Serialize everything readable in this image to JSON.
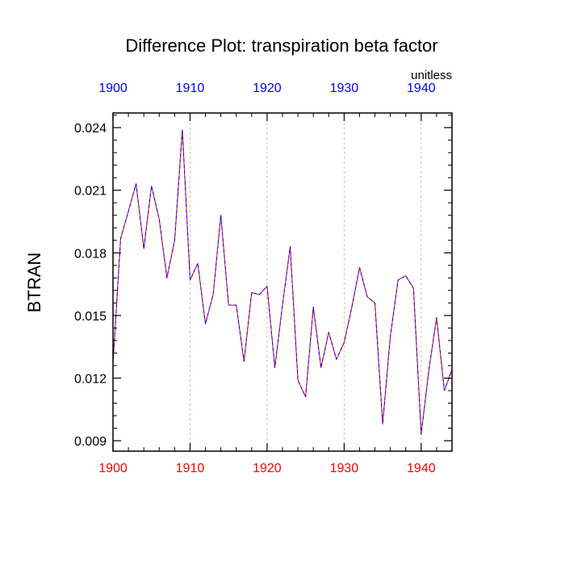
{
  "chart_data": {
    "type": "line",
    "title": "Difference Plot: transpiration beta factor",
    "units_label": "unitless",
    "ylabel": "BTRAN",
    "xlabel": "",
    "xlim": [
      1900,
      1944
    ],
    "ylim": [
      0.0085,
      0.0247
    ],
    "x_ticks": [
      1900,
      1910,
      1920,
      1930,
      1940
    ],
    "x_tick_labels": [
      "1900",
      "1910",
      "1920",
      "1930",
      "1940"
    ],
    "y_ticks": [
      0.009,
      0.012,
      0.015,
      0.018,
      0.021,
      0.024
    ],
    "y_tick_labels": [
      "0.009",
      "0.012",
      "0.015",
      "0.018",
      "0.021",
      "0.024"
    ],
    "top_axis_color": "#0000ff",
    "bottom_axis_color": "#ff0000",
    "grid": "vertical dashed at major x ticks",
    "series": [
      {
        "color": "#0000ff",
        "overlay_color": "#ff0000",
        "style": "dashed",
        "x": [
          1900,
          1901,
          1902,
          1903,
          1904,
          1905,
          1906,
          1907,
          1908,
          1909,
          1910,
          1911,
          1912,
          1913,
          1914,
          1915,
          1916,
          1917,
          1918,
          1919,
          1920,
          1921,
          1922,
          1923,
          1924,
          1925,
          1926,
          1927,
          1928,
          1929,
          1930,
          1931,
          1932,
          1933,
          1934,
          1935,
          1936,
          1937,
          1938,
          1939,
          1940,
          1941,
          1942,
          1943,
          1944
        ],
        "values": [
          0.0127,
          0.0187,
          0.02,
          0.0213,
          0.0182,
          0.0212,
          0.0196,
          0.0168,
          0.0186,
          0.0239,
          0.0167,
          0.0175,
          0.0146,
          0.016,
          0.0198,
          0.0155,
          0.0155,
          0.0128,
          0.0161,
          0.016,
          0.0164,
          0.0125,
          0.0155,
          0.0183,
          0.0119,
          0.0111,
          0.0154,
          0.0125,
          0.0142,
          0.0129,
          0.0137,
          0.0154,
          0.0173,
          0.0159,
          0.0156,
          0.0098,
          0.014,
          0.0167,
          0.0169,
          0.0163,
          0.0093,
          0.0124,
          0.0149,
          0.0114,
          0.0124
        ]
      }
    ]
  }
}
